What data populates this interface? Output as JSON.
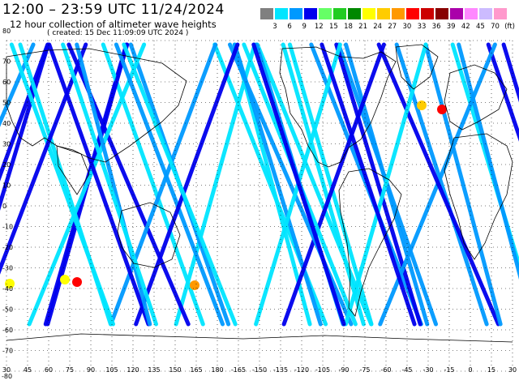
{
  "header": {
    "title": "12:00 – 23:59 UTC 11/24/2024",
    "subtitle": "12 hour collection of altimeter wave heights",
    "created": "( created: 15 Dec 11:09:09 UTC 2024 )"
  },
  "legend": {
    "colors": [
      "#808080",
      "#00e5ff",
      "#0099ff",
      "#0000ee",
      "#66ff66",
      "#22cc22",
      "#008800",
      "#ffff00",
      "#ffcc00",
      "#ff9900",
      "#ff0000",
      "#cc0000",
      "#880000",
      "#aa00aa",
      "#ff88ff",
      "#ccbbff",
      "#ff99cc"
    ],
    "labels": [
      "3",
      "6",
      "9",
      "12",
      "15",
      "18",
      "21",
      "24",
      "27",
      "30",
      "33",
      "36",
      "39",
      "42",
      "45",
      "70",
      "(ft)"
    ]
  },
  "axes": {
    "lat_labels": [
      "80",
      "70",
      "60",
      "50",
      "40",
      "30",
      "20",
      "10",
      "0",
      "-10",
      "-20",
      "-30",
      "-40",
      "-50",
      "-60",
      "-70",
      "-80"
    ],
    "lon_labels": [
      "30",
      "45",
      "60",
      "75",
      "90",
      "105",
      "120",
      "135",
      "150",
      "165",
      "180",
      "-165",
      "-150",
      "-135",
      "-120",
      "-105",
      "-90",
      "-75",
      "-60",
      "-45",
      "-30",
      "-15",
      "0",
      "15",
      "30"
    ]
  },
  "map": {
    "ocean_track_colors": [
      "#00e5ff",
      "#0099ff",
      "#0000ee"
    ],
    "land_outline_color": "#000000"
  }
}
